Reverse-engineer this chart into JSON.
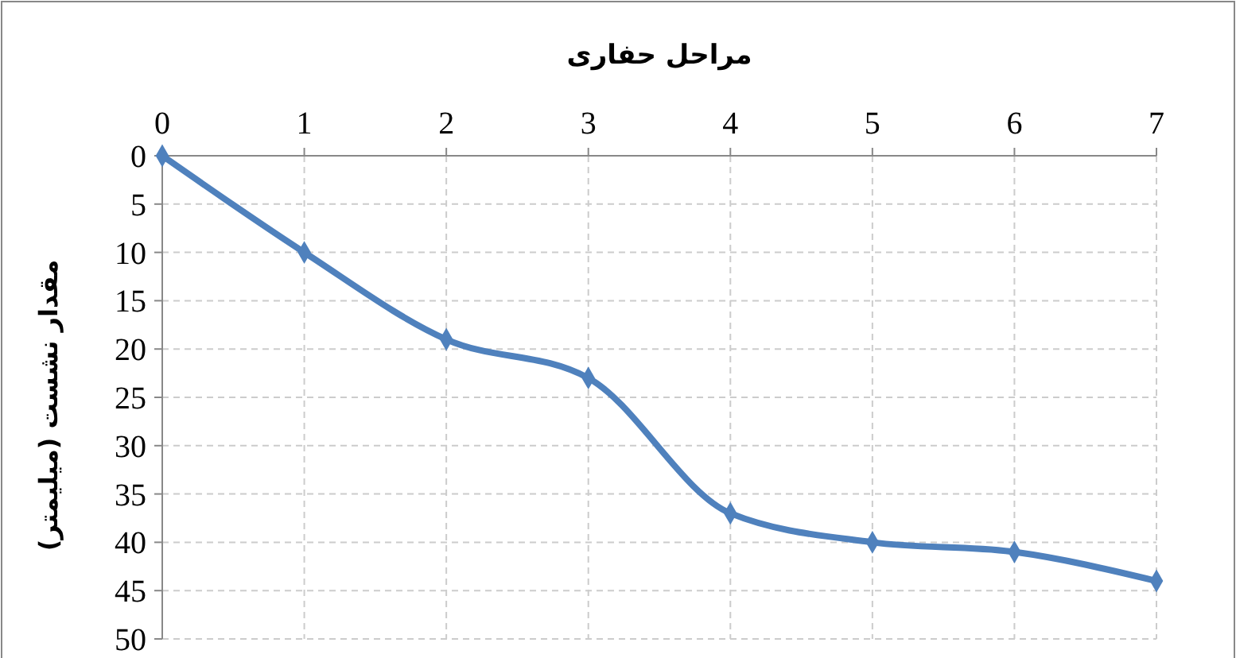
{
  "chart_data": {
    "type": "line",
    "xlabel": "مراحل حفاری",
    "ylabel": "مقدار نشست (میلیمتر)",
    "x": [
      0,
      1,
      2,
      3,
      4,
      5,
      6,
      7
    ],
    "series": [
      {
        "color": "#4f81bd",
        "values": [
          0,
          10,
          19,
          23,
          37,
          40,
          41,
          44
        ]
      }
    ],
    "xlim": [
      0,
      7
    ],
    "xticks": [
      0,
      1,
      2,
      3,
      4,
      5,
      6,
      7
    ],
    "ylim": [
      50,
      0
    ],
    "yticks": [
      0,
      5,
      10,
      15,
      20,
      25,
      30,
      35,
      40,
      45,
      50
    ],
    "grid": true,
    "marker": "diamond",
    "line_style": "solid"
  }
}
